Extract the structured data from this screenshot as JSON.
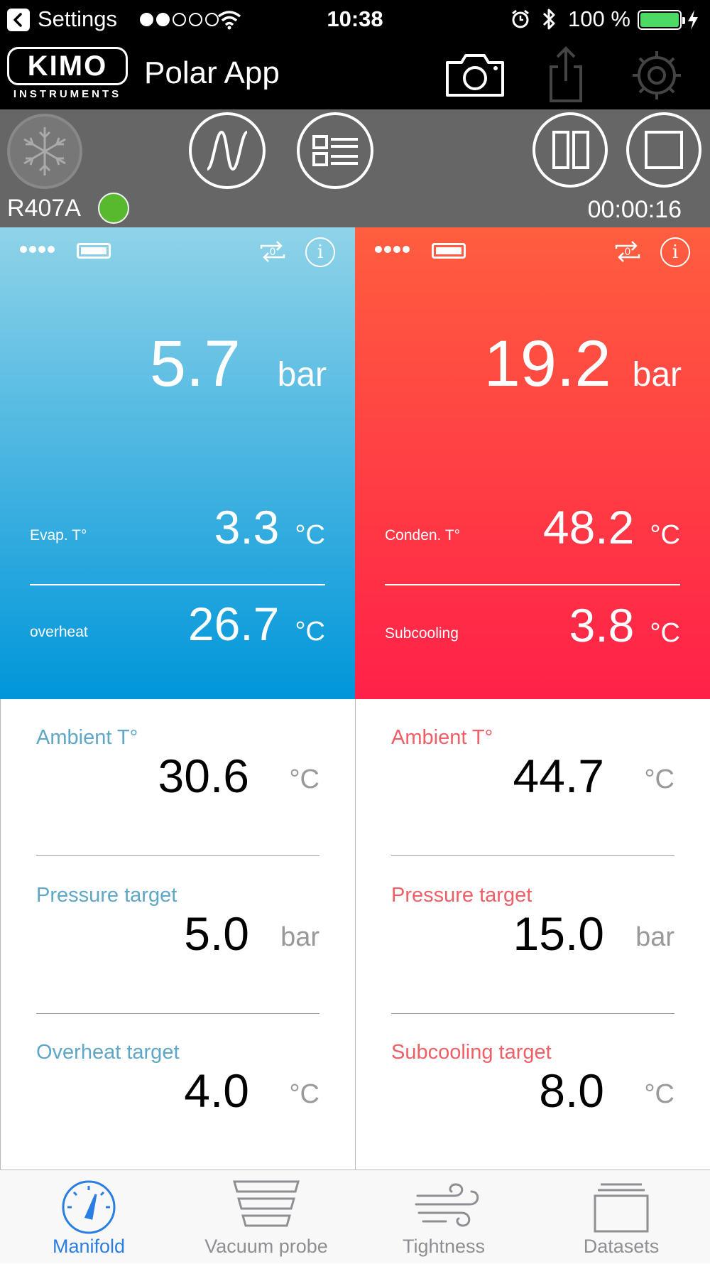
{
  "status_bar": {
    "back_label": "Settings",
    "time": "10:38",
    "battery_percent": "100 %",
    "signal_dots_filled": 2,
    "signal_dots_total": 5
  },
  "header": {
    "logo_text": "KIMO",
    "logo_sub": "INSTRUMENTS",
    "title": "Polar App",
    "icons": [
      "camera-icon",
      "share-icon",
      "gear-icon"
    ]
  },
  "toolbar": {
    "refrigerant": "R407A",
    "timer": "00:00:16",
    "status_color": "#58b92e"
  },
  "panels": {
    "low": {
      "pressure_value": "5.7",
      "pressure_unit": "bar",
      "temp_label": "Evap. T°",
      "temp_value": "3.3",
      "temp_unit": "°C",
      "second_label": "overheat",
      "second_value": "26.7",
      "second_unit": "°C",
      "sync_label": "0"
    },
    "high": {
      "pressure_value": "19.2",
      "pressure_unit": "bar",
      "temp_label": "Conden. T°",
      "temp_value": "48.2",
      "temp_unit": "°C",
      "second_label": "Subcooling",
      "second_value": "3.8",
      "second_unit": "°C",
      "sync_label": "0"
    }
  },
  "targets": {
    "left": [
      {
        "label": "Ambient T°",
        "value": "30.6",
        "unit": "°C"
      },
      {
        "label": "Pressure target",
        "value": "5.0",
        "unit": "bar"
      },
      {
        "label": "Overheat target",
        "value": "4.0",
        "unit": "°C"
      }
    ],
    "right": [
      {
        "label": "Ambient T°",
        "value": "44.7",
        "unit": "°C"
      },
      {
        "label": "Pressure target",
        "value": "15.0",
        "unit": "bar"
      },
      {
        "label": "Subcooling target",
        "value": "8.0",
        "unit": "°C"
      }
    ]
  },
  "tabs": [
    {
      "label": "Manifold",
      "active": true
    },
    {
      "label": "Vacuum probe",
      "active": false
    },
    {
      "label": "Tightness",
      "active": false
    },
    {
      "label": "Datasets",
      "active": false
    }
  ],
  "colors": {
    "low_panel_top": "#8fd3e8",
    "low_panel_bottom": "#0096da",
    "high_panel_top": "#ff5e3f",
    "high_panel_bottom": "#ff2148",
    "active_tab": "#2a7de1"
  }
}
